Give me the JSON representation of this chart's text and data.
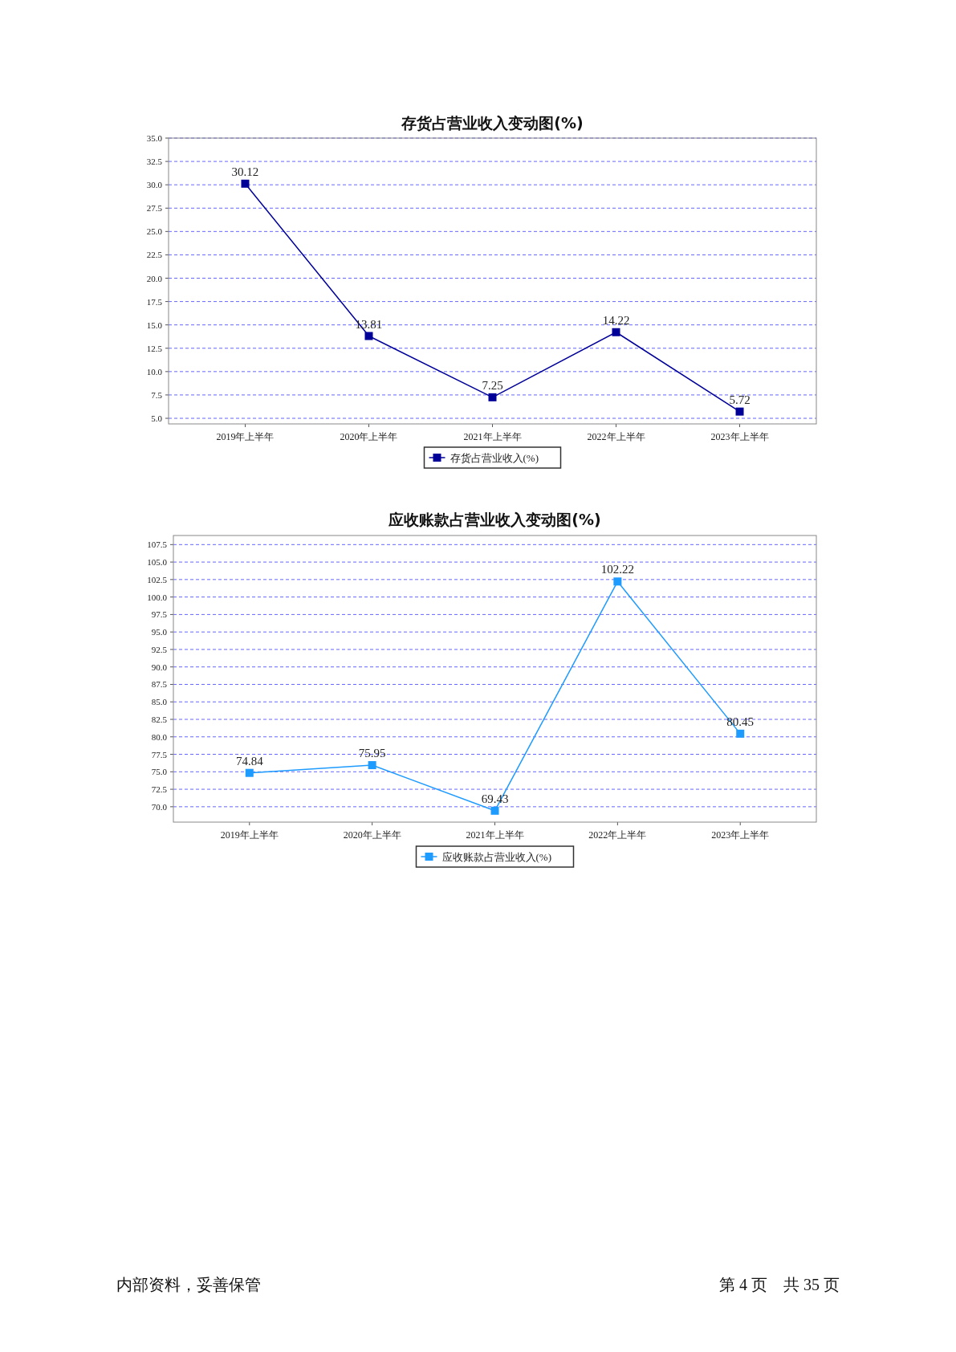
{
  "chart_data": [
    {
      "type": "line",
      "title": "存货占营业收入变动图(%)",
      "categories": [
        "2019年上半年",
        "2020年上半年",
        "2021年上半年",
        "2022年上半年",
        "2023年上半年"
      ],
      "series": [
        {
          "name": "存货占营业收入(%)",
          "color": "#000099",
          "values": [
            30.12,
            13.81,
            7.25,
            14.22,
            5.72
          ]
        }
      ],
      "ylim": [
        4.4,
        35.0
      ],
      "yticks": [
        {
          "value": 5,
          "label": "5.0"
        },
        {
          "value": 7.5,
          "label": "7.5"
        },
        {
          "value": 10,
          "label": "10.0"
        },
        {
          "value": 12.5,
          "label": "12.5"
        },
        {
          "value": 15,
          "label": "15.0"
        },
        {
          "value": 17.5,
          "label": "17.5"
        },
        {
          "value": 20,
          "label": "20.0"
        },
        {
          "value": 22.5,
          "label": "22.5"
        },
        {
          "value": 25,
          "label": "25.0"
        },
        {
          "value": 27.5,
          "label": "27.5"
        },
        {
          "value": 30,
          "label": "30.0"
        },
        {
          "value": 32.5,
          "label": "32.5"
        },
        {
          "value": 35,
          "label": "35.0"
        }
      ],
      "grid": "y",
      "legend": "bottom",
      "marker": "square",
      "line_style": "solid",
      "data_labels": true
    },
    {
      "type": "line",
      "title": "应收账款占营业收入变动图(%)",
      "categories": [
        "2019年上半年",
        "2020年上半年",
        "2021年上半年",
        "2022年上半年",
        "2023年上半年"
      ],
      "series": [
        {
          "name": "应收账款占营业收入(%)",
          "color": "#1e9bff",
          "values": [
            74.84,
            75.95,
            69.43,
            102.22,
            80.45
          ]
        }
      ],
      "ylim": [
        67.8,
        108.8
      ],
      "yticks": [
        {
          "value": 70,
          "label": "70.0"
        },
        {
          "value": 72.5,
          "label": "72.5"
        },
        {
          "value": 75,
          "label": "75.0"
        },
        {
          "value": 77.5,
          "label": "77.5"
        },
        {
          "value": 80,
          "label": "80.0"
        },
        {
          "value": 82.5,
          "label": "82.5"
        },
        {
          "value": 85,
          "label": "85.0"
        },
        {
          "value": 87.5,
          "label": "87.5"
        },
        {
          "value": 90,
          "label": "90.0"
        },
        {
          "value": 92.5,
          "label": "92.5"
        },
        {
          "value": 95,
          "label": "95.0"
        },
        {
          "value": 97.5,
          "label": "97.5"
        },
        {
          "value": 100,
          "label": "100.0"
        },
        {
          "value": 102.5,
          "label": "102.5"
        },
        {
          "value": 105,
          "label": "105.0"
        },
        {
          "value": 107.5,
          "label": "107.5"
        }
      ],
      "grid": "y",
      "legend": "bottom",
      "marker": "square",
      "line_style": "solid",
      "data_labels": true,
      "annotations": [
        "内部资料，妥善保管",
        "第 4 页　共 35 页"
      ]
    }
  ]
}
